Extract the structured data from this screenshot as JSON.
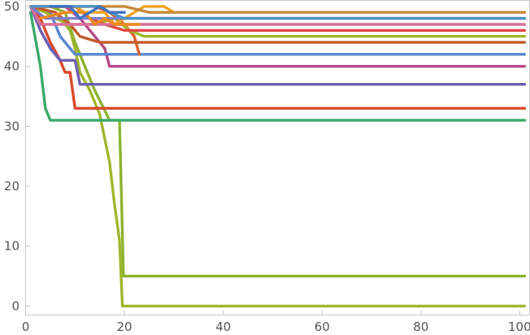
{
  "chart_data": {
    "type": "line",
    "title": "",
    "xlabel": "",
    "ylabel": "",
    "xlim": [
      0,
      102
    ],
    "ylim": [
      -1.5,
      51
    ],
    "x_ticks": [
      0,
      20,
      40,
      60,
      80,
      100
    ],
    "x_tick_labels": [
      "0",
      "20",
      "40",
      "60",
      "80",
      "100"
    ],
    "y_ticks": [
      0,
      10,
      20,
      30,
      40,
      50
    ],
    "y_tick_labels": [
      "0",
      "10",
      "20",
      "30",
      "40",
      "50"
    ],
    "grid": false,
    "legend": "none",
    "series": [
      {
        "color": "#9fb72d",
        "points": [
          [
            1,
            50
          ],
          [
            6,
            49
          ],
          [
            9,
            46
          ],
          [
            10,
            43
          ],
          [
            11,
            39
          ],
          [
            13,
            36
          ],
          [
            15,
            32
          ],
          [
            17,
            24
          ],
          [
            18,
            17
          ],
          [
            19,
            11
          ],
          [
            19.6,
            0
          ],
          [
            101,
            0
          ]
        ]
      },
      {
        "color": "#8fb22f",
        "points": [
          [
            1,
            50
          ],
          [
            5,
            50
          ],
          [
            8,
            49
          ],
          [
            10,
            44
          ],
          [
            12,
            40
          ],
          [
            14,
            36
          ],
          [
            17,
            31
          ],
          [
            19,
            31
          ],
          [
            19.8,
            5
          ],
          [
            101,
            5
          ]
        ]
      },
      {
        "color": "#3aaa6a",
        "points": [
          [
            1,
            49
          ],
          [
            3,
            40
          ],
          [
            4,
            33
          ],
          [
            5,
            31
          ],
          [
            101,
            31
          ]
        ]
      },
      {
        "color": "#d9482b",
        "points": [
          [
            1,
            50
          ],
          [
            3,
            48
          ],
          [
            5,
            44
          ],
          [
            7,
            41
          ],
          [
            8,
            39
          ],
          [
            9,
            39
          ],
          [
            10,
            33
          ],
          [
            101,
            33
          ]
        ]
      },
      {
        "color": "#6d5fb3",
        "points": [
          [
            1,
            50
          ],
          [
            3,
            46
          ],
          [
            5,
            43
          ],
          [
            7,
            41
          ],
          [
            10,
            41
          ],
          [
            11,
            37
          ],
          [
            101,
            37
          ]
        ]
      },
      {
        "color": "#b54a85",
        "points": [
          [
            1,
            50
          ],
          [
            8,
            50
          ],
          [
            11,
            48
          ],
          [
            14,
            45
          ],
          [
            16,
            43
          ],
          [
            17,
            40
          ],
          [
            101,
            40
          ]
        ]
      },
      {
        "color": "#5a86d0",
        "points": [
          [
            1,
            50
          ],
          [
            5,
            49
          ],
          [
            7,
            45
          ],
          [
            9,
            43
          ],
          [
            10,
            42
          ],
          [
            101,
            42
          ]
        ]
      },
      {
        "color": "#d95f2b",
        "points": [
          [
            1,
            50
          ],
          [
            14,
            50
          ],
          [
            17,
            49
          ],
          [
            20,
            47
          ],
          [
            22,
            45
          ],
          [
            23,
            42
          ]
        ]
      },
      {
        "color": "#9fb72d",
        "points": [
          [
            1,
            50
          ],
          [
            4,
            49
          ],
          [
            6,
            48
          ],
          [
            9,
            47
          ],
          [
            14,
            47
          ],
          [
            18,
            48
          ],
          [
            21,
            46
          ],
          [
            24,
            45
          ],
          [
            101,
            45
          ]
        ]
      },
      {
        "color": "#c35b27",
        "points": [
          [
            1,
            50
          ],
          [
            6,
            49
          ],
          [
            9,
            47
          ],
          [
            11,
            45
          ],
          [
            15,
            44
          ],
          [
            17,
            44
          ],
          [
            101,
            44
          ]
        ]
      },
      {
        "color": "#e04646",
        "points": [
          [
            1,
            50
          ],
          [
            10,
            50
          ],
          [
            13,
            48
          ],
          [
            16,
            47
          ],
          [
            20,
            46
          ],
          [
            101,
            46
          ]
        ]
      },
      {
        "color": "#f0a21e",
        "points": [
          [
            1,
            50
          ],
          [
            10,
            50
          ],
          [
            12,
            49
          ],
          [
            16,
            49
          ],
          [
            18,
            47
          ],
          [
            20,
            48
          ],
          [
            22,
            49
          ],
          [
            24,
            50
          ],
          [
            28,
            50
          ],
          [
            30,
            49
          ]
        ]
      },
      {
        "color": "#d86f9c",
        "points": [
          [
            1,
            50
          ],
          [
            3,
            47
          ],
          [
            10,
            47
          ],
          [
            13,
            47
          ],
          [
            101,
            47
          ]
        ]
      },
      {
        "color": "#7f7ed1",
        "points": [
          [
            1,
            50
          ],
          [
            4,
            48
          ],
          [
            10,
            48
          ],
          [
            15,
            48
          ],
          [
            101,
            48
          ]
        ]
      },
      {
        "color": "#c48a3a",
        "points": [
          [
            1,
            50
          ],
          [
            20,
            50
          ],
          [
            25,
            49
          ],
          [
            101,
            49
          ]
        ]
      },
      {
        "color": "#4f93c9",
        "points": [
          [
            1,
            50
          ],
          [
            15,
            50
          ],
          [
            17,
            49
          ],
          [
            20,
            48
          ],
          [
            101,
            48
          ]
        ]
      },
      {
        "color": "#ee8a1f",
        "points": [
          [
            3,
            48
          ],
          [
            8,
            49
          ],
          [
            12,
            49
          ],
          [
            14,
            47
          ],
          [
            16,
            48
          ],
          [
            18,
            47
          ],
          [
            23,
            47
          ]
        ]
      },
      {
        "color": "#3f72c4",
        "points": [
          [
            5,
            50
          ],
          [
            9,
            50
          ],
          [
            11,
            48
          ],
          [
            15,
            50
          ],
          [
            17,
            49
          ],
          [
            20,
            49
          ]
        ]
      }
    ]
  }
}
